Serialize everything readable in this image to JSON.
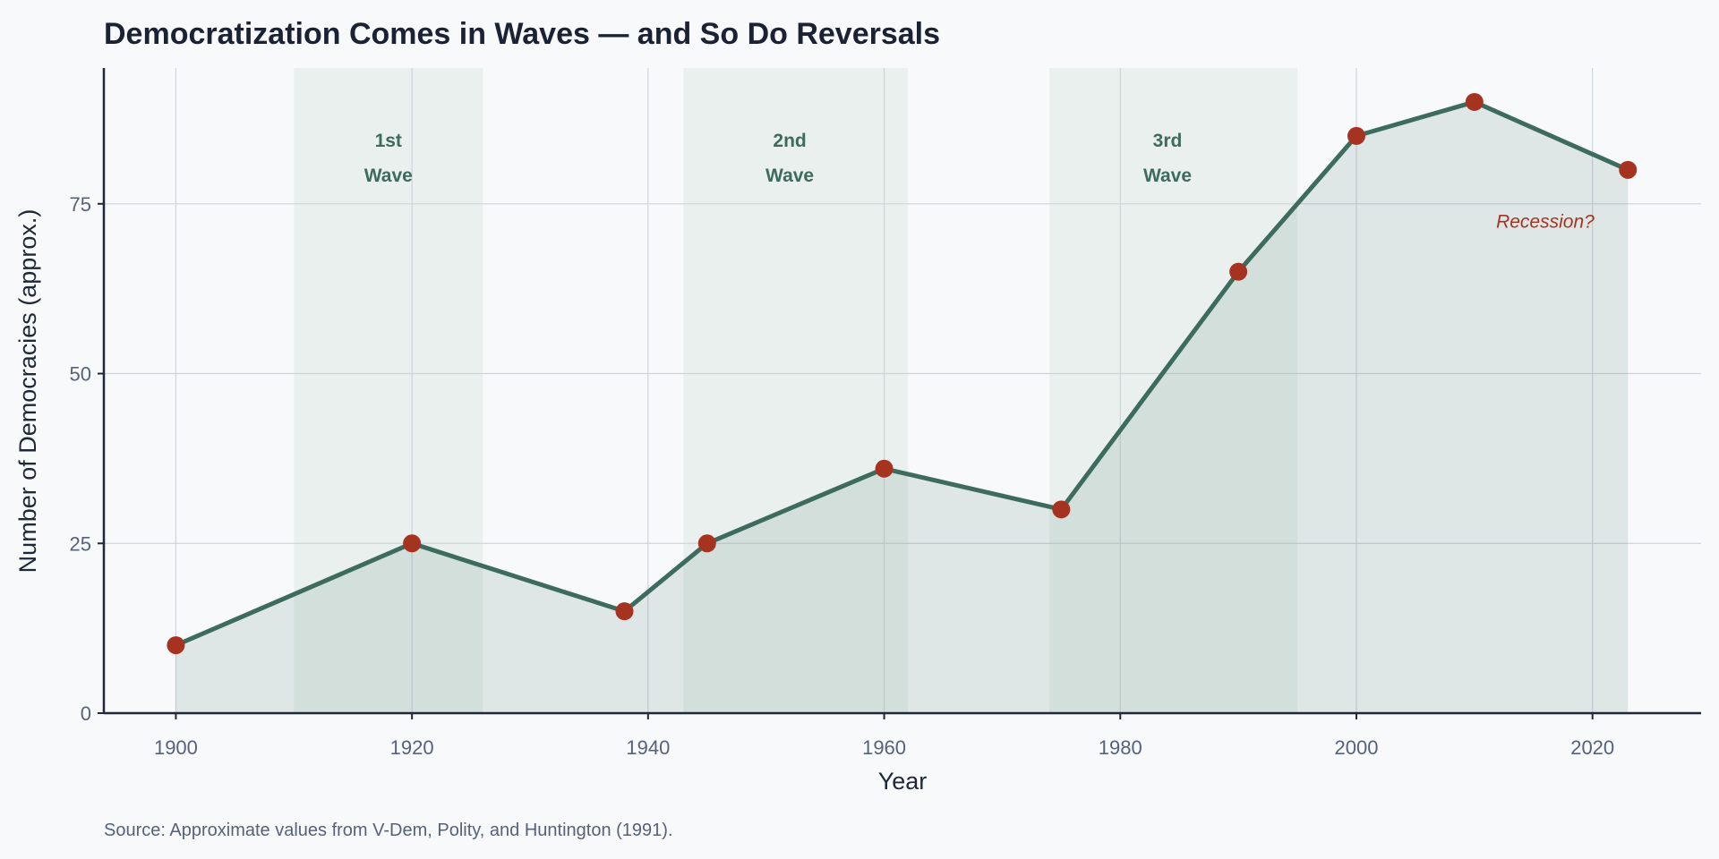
{
  "chart_data": {
    "type": "line",
    "title": "Democratization Comes in Waves — and So Do Reversals",
    "xlabel": "Year",
    "ylabel": "Number of Democracies (approx.)",
    "source": "Source: Approximate values from V-Dem, Polity, and Huntington (1991).",
    "x": [
      1900,
      1920,
      1938,
      1945,
      1960,
      1975,
      1990,
      2000,
      2010,
      2023
    ],
    "y": [
      10,
      25,
      15,
      25,
      36,
      30,
      65,
      85,
      90,
      80
    ],
    "xlim": [
      1893.9,
      2029.2
    ],
    "ylim": [
      0,
      95
    ],
    "xticks": [
      1900,
      1920,
      1940,
      1960,
      1980,
      2000,
      2020
    ],
    "yticks": [
      0,
      25,
      50,
      75
    ],
    "grid": true,
    "waves": [
      {
        "start": 1910,
        "end": 1926,
        "label_line1": "1st",
        "label_line2": "Wave",
        "label_x": 1918
      },
      {
        "start": 1943,
        "end": 1962,
        "label_line1": "2nd",
        "label_line2": "Wave",
        "label_x": 1952
      },
      {
        "start": 1974,
        "end": 1995,
        "label_line1": "3rd",
        "label_line2": "Wave",
        "label_x": 1984
      }
    ],
    "annotations": [
      {
        "text": "Recession?",
        "x": 2016,
        "y": 71.5
      }
    ],
    "colors": {
      "line": "#3d6b5e",
      "marker": "#a63320",
      "band": "#e9f0ee",
      "fill": "#3d6b5e",
      "grid": "#cfd4dc",
      "axis": "#1f2838"
    }
  }
}
